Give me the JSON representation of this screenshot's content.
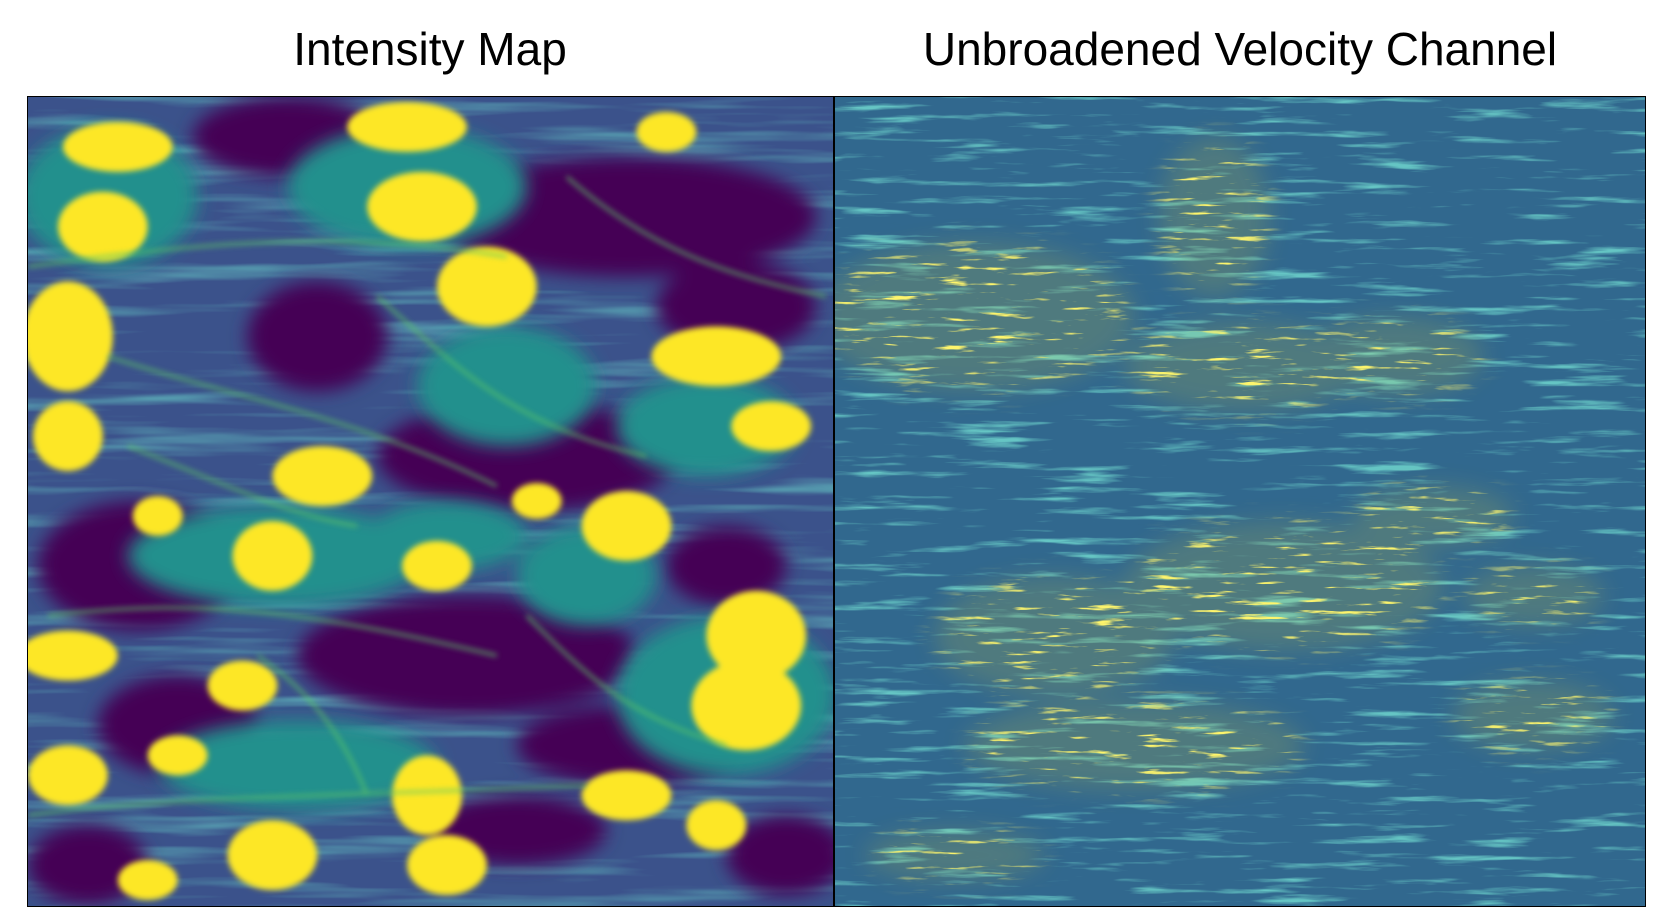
{
  "figure": {
    "left_panel": {
      "title": "Intensity Map",
      "colormap": "viridis",
      "colors": {
        "low": "#440154",
        "mid_low": "#3b528b",
        "mid": "#21908d",
        "mid_high": "#5dc963",
        "high": "#fde725"
      }
    },
    "right_panel": {
      "title": "Unbroadened Velocity Channel",
      "colormap": "viridis",
      "colors": {
        "background": "#31688e",
        "mid": "#21908d",
        "mid_high": "#5dc963",
        "high": "#fde725"
      }
    }
  }
}
